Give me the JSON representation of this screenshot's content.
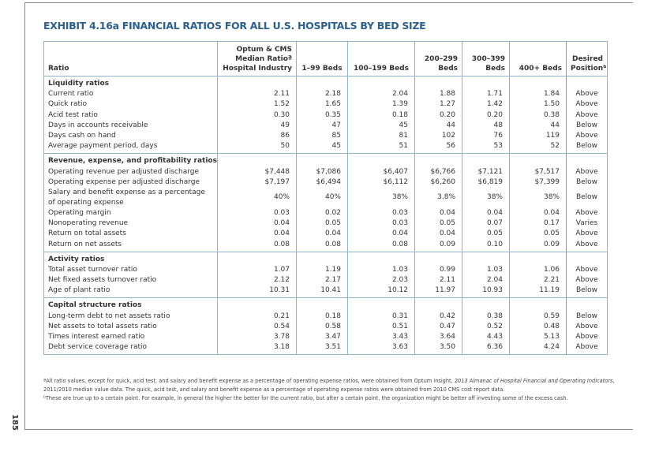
{
  "title": "EXHIBIT 4.16a  FINANCIAL RATIOS FOR ALL U.S. HOSPITALS BY BED SIZE",
  "columns": [
    "Ratio",
    "Optum & CMS",
    "Median Ratioª",
    "Hospital Industry",
    "1–99 Beds",
    "100–199 Beds",
    "200–299",
    "Beds",
    "300–399",
    "Beds",
    "400+ Beds",
    "Desired",
    "Positionᵇ"
  ],
  "sections": [
    {
      "heading": "Liquidity ratios",
      "rows": [
        [
          "Current ratio",
          "2.11",
          "2.18",
          "2.04",
          "1.88",
          "1.71",
          "1.84",
          "Above"
        ],
        [
          "Quick ratio",
          "1.52",
          "1.65",
          "1.39",
          "1.27",
          "1.42",
          "1.50",
          "Above"
        ],
        [
          "Acid test ratio",
          "0.30",
          "0.35",
          "0.18",
          "0.20",
          "0.20",
          "0.38",
          "Above"
        ],
        [
          "Days in accounts receivable",
          "49",
          "47",
          "45",
          "44",
          "48",
          "44",
          "Below"
        ],
        [
          "Days cash on hand",
          "86",
          "85",
          "81",
          "102",
          "76",
          "119",
          "Above"
        ],
        [
          "Average payment period, days",
          "50",
          "45",
          "51",
          "56",
          "53",
          "52",
          "Below"
        ]
      ]
    },
    {
      "heading": "Revenue, expense, and profitability ratios",
      "rows": [
        [
          "Operating revenue per adjusted discharge",
          "$7,448",
          "$7,086",
          "$6,407",
          "$6,766",
          "$7,121",
          "$7,517",
          "Above"
        ],
        [
          "Operating expense per adjusted discharge",
          "$7,197",
          "$6,494",
          "$6,112",
          "$6,260",
          "$6,819",
          "$7,399",
          "Below"
        ],
        [
          "Salary and benefit expense as a percentage of operating expense",
          "40%",
          "40%",
          "38%",
          "3.8%",
          "38%",
          "38%",
          "Below"
        ],
        [
          "Operating margin",
          "0.03",
          "0.02",
          "0.03",
          "0.04",
          "0.04",
          "0.04",
          "Above"
        ],
        [
          "Nonoperating revenue",
          "0.04",
          "0.05",
          "0.03",
          "0.05",
          "0.07",
          "0.17",
          "Varies"
        ],
        [
          "Return on total assets",
          "0.04",
          "0.04",
          "0.04",
          "0.04",
          "0.05",
          "0.05",
          "Above"
        ],
        [
          "Return on net assets",
          "0.08",
          "0.08",
          "0.08",
          "0.09",
          "0.10",
          "0.09",
          "Above"
        ]
      ]
    },
    {
      "heading": "Activity ratios",
      "rows": [
        [
          "Total asset turnover ratio",
          "1.07",
          "1.19",
          "1.03",
          "0.99",
          "1.03",
          "1.06",
          "Above"
        ],
        [
          "Net fixed assets turnover ratio",
          "2.12",
          "2.17",
          "2.03",
          "2.11",
          "2.04",
          "2.21",
          "Above"
        ],
        [
          "Age of plant ratio",
          "10.31",
          "10.41",
          "10.12",
          "11.97",
          "10.93",
          "11.19",
          "Below"
        ]
      ]
    },
    {
      "heading": "Capital structure ratios",
      "rows": [
        [
          "Long-term debt to net assets ratio",
          "0.21",
          "0.18",
          "0.31",
          "0.42",
          "0.38",
          "0.59",
          "Below"
        ],
        [
          "Net assets to total assets ratio",
          "0.54",
          "0.58",
          "0.51",
          "0.47",
          "0.52",
          "0.48",
          "Above"
        ],
        [
          "Times interest earned ratio",
          "3.78",
          "3.47",
          "3.43",
          "3.64",
          "4.43",
          "5.13",
          "Above"
        ],
        [
          "Debt service coverage ratio",
          "3.18",
          "3.51",
          "3.63",
          "3.50",
          "6.36",
          "4.24",
          "Above"
        ]
      ]
    }
  ],
  "footnotes": {
    "a_part1": "ªAll ratio values, except for quick, acid test, and salary and benefit expense as a percentage of operating expense ratios, were obtained from Optum Insight, ",
    "a_italic1": "2013 Almanac of Hospital Financial and Operating Indicators",
    "a_part2": ", 2011/2010 median value data. The quick, acid test, and salary and benefit expense as a percentage of operating expense ratios were obtained from 2010 CMS cost report data.",
    "b": "ᵇThese are true up to a certain point. For example, in general the higher the better for the current ratio, but after a certain point, the organization might be better off investing some of the excess cash."
  },
  "page_number": "185",
  "colors": {
    "title": "#2b5f8e",
    "rules": "#8fb4cc"
  }
}
